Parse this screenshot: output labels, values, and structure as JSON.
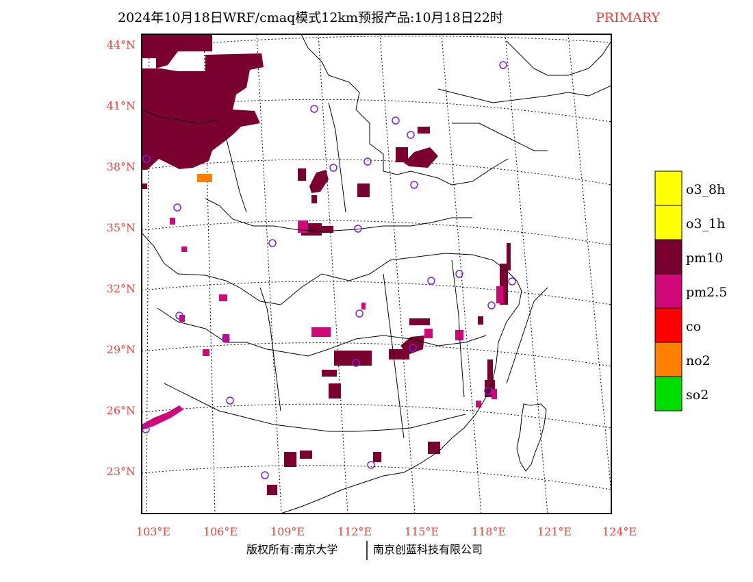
{
  "title": {
    "main": "2024年10月18日WRF/cmaq模式12km预报产品:10月18日22时",
    "tag": "PRIMARY"
  },
  "axes": {
    "lat_labels": [
      "44°N",
      "41°N",
      "38°N",
      "35°N",
      "32°N",
      "29°N",
      "26°N",
      "23°N"
    ],
    "lon_labels": [
      "103°E",
      "106°E",
      "109°E",
      "112°E",
      "115°E",
      "118°E",
      "121°E",
      "124°E"
    ],
    "tick_color": "#e8423a"
  },
  "legend": {
    "items": [
      {
        "label": "o3_8h",
        "color": "#ffff00"
      },
      {
        "label": "o3_1h",
        "color": "#ffff00"
      },
      {
        "label": "pm10",
        "color": "#7a0030"
      },
      {
        "label": "pm2.5",
        "color": "#d0097a"
      },
      {
        "label": "co",
        "color": "#ff0000"
      },
      {
        "label": "no2",
        "color": "#ff7f00"
      },
      {
        "label": "so2",
        "color": "#00dd00"
      }
    ]
  },
  "footer": {
    "left": "版权所有:南京大学",
    "right": "南京创蓝科技有限公司"
  },
  "colors": {
    "pm10": "#7a0030",
    "pm25": "#d0097a",
    "no2": "#ff7f00",
    "station": "#7b22d4",
    "line": "#000000"
  }
}
